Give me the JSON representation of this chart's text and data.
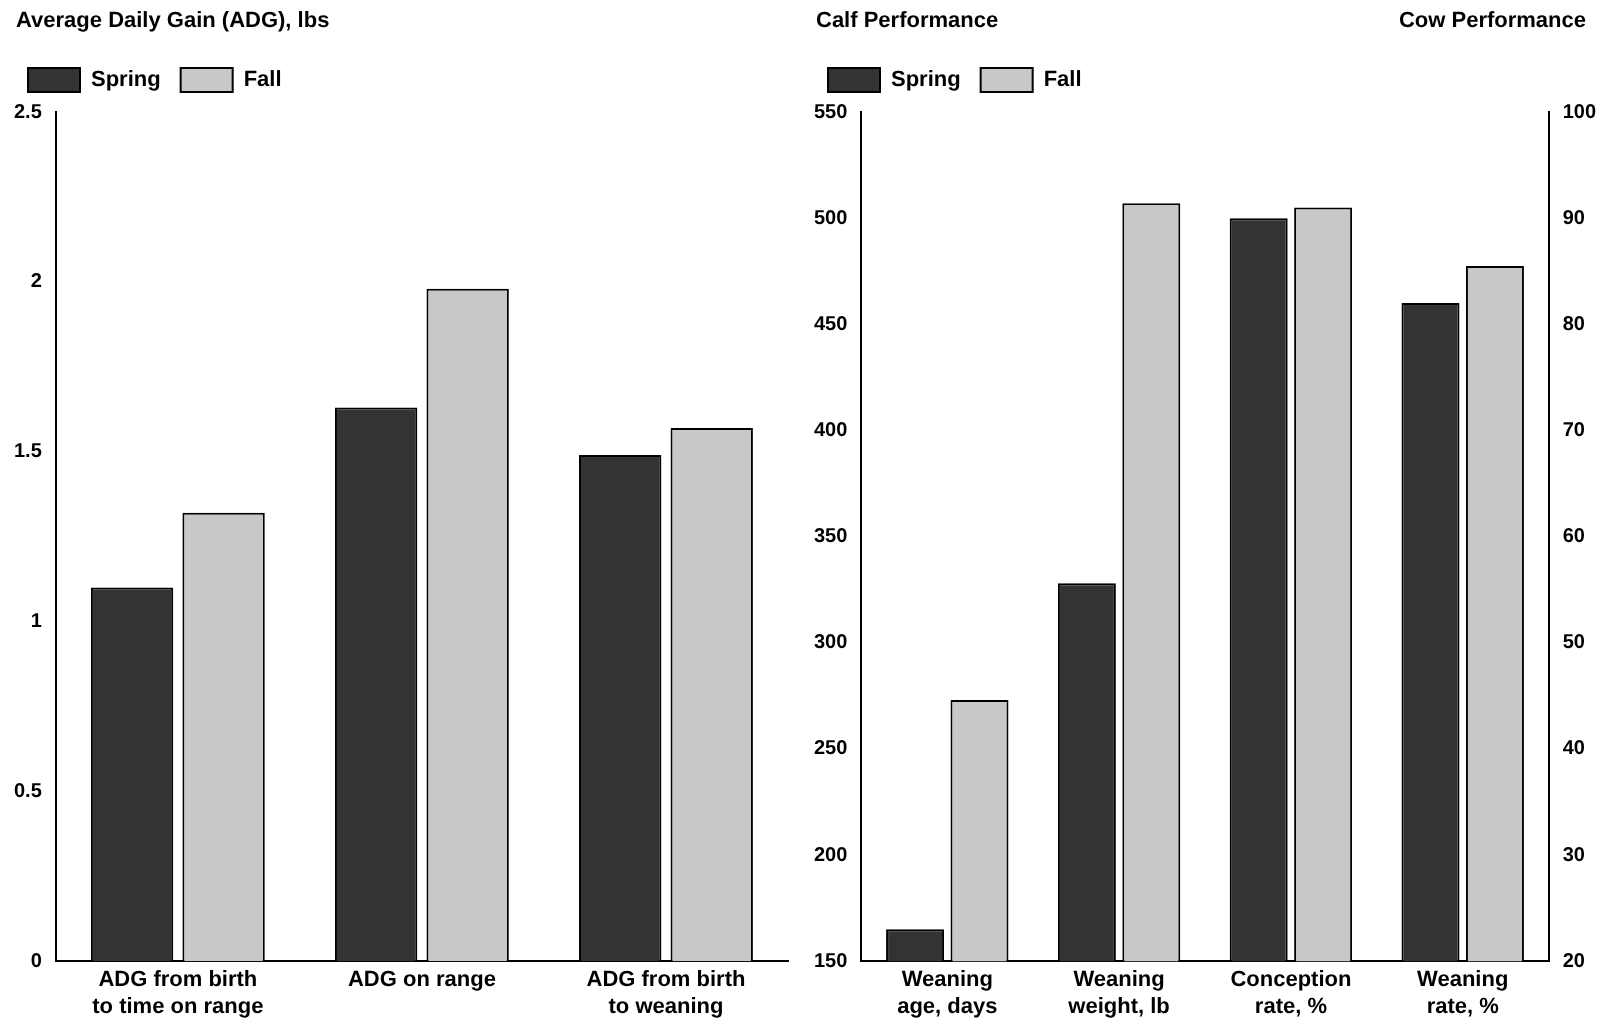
{
  "chart_data": [
    {
      "type": "bar",
      "ylabel": "Average Daily Gain (ADG), lbs",
      "categories": [
        "ADG from birth to time on range",
        "ADG on range",
        "ADG from birth to weaning"
      ],
      "series": [
        {
          "name": "Spring",
          "color": "#333333",
          "values": [
            1.1,
            1.63,
            1.49
          ]
        },
        {
          "name": "Fall",
          "color": "#c8c8c8",
          "values": [
            1.32,
            1.98,
            1.57
          ]
        }
      ],
      "ylim": [
        0,
        2.5
      ],
      "yticks": [
        0,
        0.5,
        1,
        1.5,
        2,
        2.5
      ],
      "grid": false,
      "legend": "top left"
    },
    {
      "type": "bar",
      "ylabel": "Calf Performance",
      "y2label": "Cow Performance",
      "categories": [
        "Weaning age, days",
        "Weaning weight, lb",
        "Conception rate, %",
        "Weaning rate, %"
      ],
      "series": [
        {
          "name": "Spring",
          "color": "#333333",
          "values": [
            165,
            328,
            null,
            null
          ]
        },
        {
          "name": "Fall",
          "color": "#c8c8c8",
          "values": [
            273,
            507,
            null,
            null
          ]
        },
        {
          "color": "#333333",
          "values": [
            null,
            null,
            90,
            82
          ],
          "axis": "y2"
        },
        {
          "color": "#c8c8c8",
          "values": [
            null,
            null,
            91,
            85.5
          ],
          "axis": "y2"
        }
      ],
      "ylim": [
        150,
        550
      ],
      "yticks": [
        150,
        200,
        250,
        300,
        350,
        400,
        450,
        500,
        550
      ],
      "y2lim": [
        20,
        100
      ],
      "y2ticks": [
        20,
        30,
        40,
        50,
        60,
        70,
        80,
        90,
        100
      ],
      "grid": false,
      "legend": "top left"
    }
  ]
}
